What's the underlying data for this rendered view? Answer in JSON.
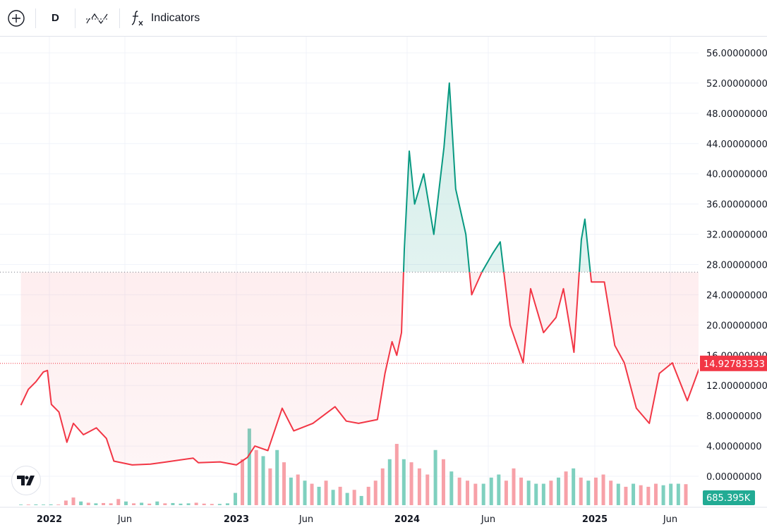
{
  "toolbar": {
    "add_icon": "plus-circle-icon",
    "interval": "D",
    "chart_style_icon": "baseline-chart-icon",
    "indicators_icon": "fx-icon",
    "indicators_label": "Indicators"
  },
  "logo": "TV",
  "colors": {
    "up_line": "#089981",
    "down_line": "#f23645",
    "up_fill": "#e6f4f1",
    "down_fill": "#fde4e6",
    "vol_up": "#7fd0bf",
    "vol_down": "#f7a1a8",
    "price_label_bg": "#f23645",
    "volume_label_bg": "#22ab94",
    "grid": "#f0f3fa"
  },
  "chart_data": {
    "type": "line",
    "style": "baseline",
    "baseline_value": 27.0,
    "ylim": [
      -9.5,
      58
    ],
    "grid": true,
    "y_ticks": [
      "56.00000000",
      "52.00000000",
      "48.00000000",
      "44.00000000",
      "40.00000000",
      "36.00000000",
      "32.00000000",
      "28.00000000",
      "24.00000000",
      "20.00000000",
      "16.00000000",
      "12.00000000",
      "8.00000000",
      "4.00000000",
      "0.00000000"
    ],
    "x_ticks": [
      {
        "label": "2022",
        "date": "2022-01-01",
        "bold": true
      },
      {
        "label": "Jun",
        "date": "2022-06-01",
        "bold": false
      },
      {
        "label": "2023",
        "date": "2023-01-01",
        "bold": true
      },
      {
        "label": "Jun",
        "date": "2023-06-01",
        "bold": false
      },
      {
        "label": "2024",
        "date": "2024-01-01",
        "bold": true
      },
      {
        "label": "Jun",
        "date": "2024-06-01",
        "bold": false
      },
      {
        "label": "2025",
        "date": "2025-01-01",
        "bold": true
      },
      {
        "label": "Jun",
        "date": "2025-06-01",
        "bold": false
      }
    ],
    "last_price": "14.92783333",
    "last_value": 14.93,
    "last_volume": "685.395K",
    "price": [
      [
        "2021-11-05",
        9.4
      ],
      [
        "2021-11-20",
        11.5
      ],
      [
        "2021-12-05",
        12.5
      ],
      [
        "2021-12-20",
        13.8
      ],
      [
        "2021-12-28",
        14
      ],
      [
        "2022-01-05",
        9.5
      ],
      [
        "2022-01-20",
        8.5
      ],
      [
        "2022-02-05",
        4.5
      ],
      [
        "2022-02-18",
        7
      ],
      [
        "2022-03-10",
        5.5
      ],
      [
        "2022-04-05",
        6.4
      ],
      [
        "2022-04-25",
        5
      ],
      [
        "2022-05-10",
        2
      ],
      [
        "2022-06-15",
        1.5
      ],
      [
        "2022-07-20",
        1.6
      ],
      [
        "2022-08-20",
        1.9
      ],
      [
        "2022-10-10",
        2.4
      ],
      [
        "2022-10-20",
        1.8
      ],
      [
        "2022-12-01",
        1.9
      ],
      [
        "2023-01-01",
        1.5
      ],
      [
        "2023-01-25",
        2.5
      ],
      [
        "2023-02-10",
        4
      ],
      [
        "2023-03-10",
        3.4
      ],
      [
        "2023-04-10",
        9
      ],
      [
        "2023-05-05",
        6
      ],
      [
        "2023-06-15",
        7
      ],
      [
        "2023-08-01",
        9.2
      ],
      [
        "2023-08-25",
        7.3
      ],
      [
        "2023-09-20",
        7
      ],
      [
        "2023-10-30",
        7.5
      ],
      [
        "2023-11-15",
        13.6
      ],
      [
        "2023-11-30",
        17.8
      ],
      [
        "2023-12-10",
        16
      ],
      [
        "2023-12-20",
        19
      ],
      [
        "2023-12-26",
        30
      ],
      [
        "2024-01-05",
        43
      ],
      [
        "2024-01-15",
        36
      ],
      [
        "2024-02-01",
        40
      ],
      [
        "2024-02-20",
        32
      ],
      [
        "2024-03-10",
        43.5
      ],
      [
        "2024-03-20",
        52
      ],
      [
        "2024-04-01",
        38
      ],
      [
        "2024-04-20",
        32
      ],
      [
        "2024-05-01",
        24
      ],
      [
        "2024-05-20",
        27
      ],
      [
        "2024-06-10",
        29.5
      ],
      [
        "2024-06-25",
        31
      ],
      [
        "2024-07-15",
        20
      ],
      [
        "2024-08-10",
        15
      ],
      [
        "2024-08-25",
        24.8
      ],
      [
        "2024-09-20",
        19
      ],
      [
        "2024-10-15",
        21
      ],
      [
        "2024-10-30",
        24.8
      ],
      [
        "2024-11-20",
        16.4
      ],
      [
        "2024-12-05",
        31.3
      ],
      [
        "2024-12-12",
        34
      ],
      [
        "2024-12-25",
        25.7
      ],
      [
        "2025-01-20",
        25.7
      ],
      [
        "2025-02-10",
        17.3
      ],
      [
        "2025-03-01",
        15
      ],
      [
        "2025-03-25",
        9
      ],
      [
        "2025-04-20",
        7
      ],
      [
        "2025-05-10",
        13.6
      ],
      [
        "2025-06-05",
        15
      ],
      [
        "2025-07-05",
        10
      ],
      [
        "2025-07-30",
        14.5
      ],
      [
        "2025-08-10",
        14.93
      ]
    ],
    "volume_K": {
      "start": "2021-11-05",
      "step_days": 15,
      "values": [
        20,
        20,
        25,
        20,
        25,
        20,
        150,
        250,
        120,
        80,
        60,
        70,
        60,
        200,
        120,
        60,
        80,
        50,
        120,
        60,
        70,
        50,
        60,
        80,
        50,
        40,
        40,
        60,
        400,
        1500,
        2500,
        1800,
        1600,
        1200,
        1800,
        1400,
        900,
        1000,
        800,
        700,
        600,
        800,
        500,
        600,
        400,
        500,
        300,
        600,
        800,
        1200,
        1500,
        2000,
        1500,
        1400,
        1200,
        1000,
        1800,
        1500,
        1100,
        900,
        800,
        700,
        700,
        900,
        1000,
        800,
        1200,
        900,
        800,
        700,
        700,
        800,
        900,
        1100,
        1200,
        900,
        800,
        900,
        1000,
        800,
        700,
        600,
        700,
        650,
        600,
        700,
        650,
        700,
        700,
        685.395
      ]
    }
  }
}
